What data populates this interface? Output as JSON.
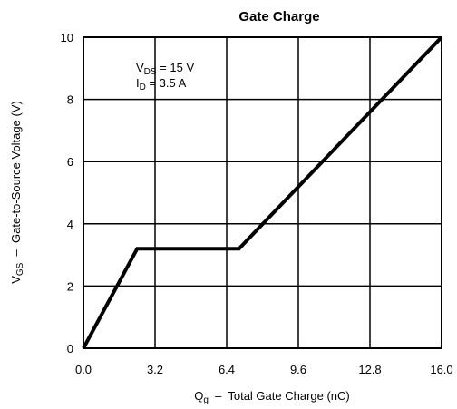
{
  "chart_data": {
    "type": "line",
    "title": "Gate Charge",
    "xlabel": {
      "main": "Q",
      "sub": "g",
      "rest": "  –  Total Gate Charge (nC)"
    },
    "ylabel": {
      "main": "V",
      "sub": "GS",
      "rest": "  –  Gate-to-Source Voltage (V)"
    },
    "xlim": [
      0,
      16
    ],
    "ylim": [
      0,
      10
    ],
    "x_ticks": [
      "0.0",
      "3.2",
      "6.4",
      "9.6",
      "12.8",
      "16.0"
    ],
    "y_ticks": [
      "0",
      "2",
      "4",
      "6",
      "8",
      "10"
    ],
    "grid": true,
    "annotations": [
      {
        "main": "V",
        "sub": "DS",
        "rest": " = 15 V"
      },
      {
        "main": "I",
        "sub": "D",
        "rest": " = 3.5 A"
      }
    ],
    "series": [
      {
        "x": [
          0.0,
          2.4,
          6.95,
          16.0
        ],
        "y": [
          0.0,
          3.2,
          3.2,
          10.0
        ]
      }
    ]
  }
}
